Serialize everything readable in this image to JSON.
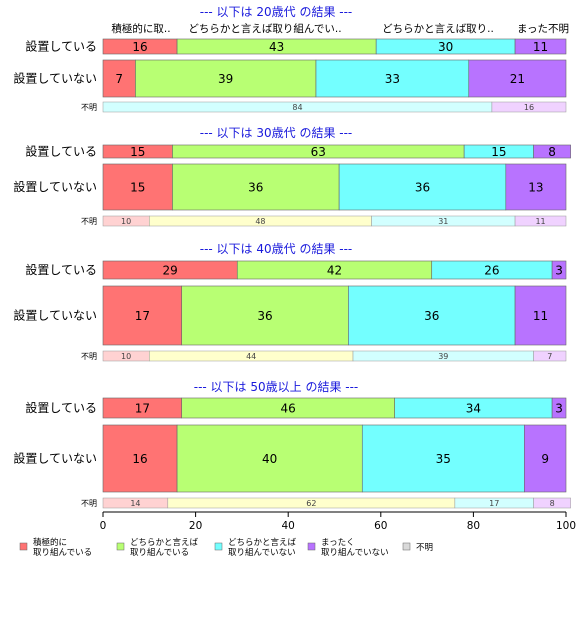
{
  "chart_data": {
    "type": "bar",
    "orientation": "horizontal-stacked-percent",
    "categories": [
      "積極的に\n取り組んでいる",
      "どちらかと言えば\n取り組んでいる",
      "どちらかと言えば\n取り組んでいない",
      "まったく\n取り組んでいない",
      "不明"
    ],
    "colors": [
      "#ff7373",
      "#b8ff73",
      "#73ffff",
      "#b873ff",
      "#d9d9d9"
    ],
    "light_colors": [
      "#ffd2d2",
      "#ffffcc",
      "#d2ffff",
      "#f0d2ff",
      "#e0e0e0"
    ],
    "category_headers": [
      "積極的に取..",
      "どちらかと言えば取り組んでい..",
      "どちらかと言えば取り..",
      "まった不明"
    ],
    "xlim": [
      0,
      100
    ],
    "xticks": [
      0,
      20,
      40,
      60,
      80,
      100
    ],
    "legend_position": "bottom",
    "groups": [
      {
        "title": "--- 以下は 20歳代 の結果 ---",
        "rows": [
          {
            "label": "設置している",
            "values": [
              16,
              43,
              30,
              11
            ]
          },
          {
            "label": "設置していない",
            "values": [
              7,
              39,
              33,
              21
            ]
          }
        ],
        "unknown": {
          "label": "不明",
          "values": [
            84,
            16
          ],
          "colors": [
            "#d2ffff",
            "#f0d2ff"
          ]
        }
      },
      {
        "title": "--- 以下は 30歳代 の結果 ---",
        "rows": [
          {
            "label": "設置している",
            "values": [
              15,
              63,
              15,
              8
            ]
          },
          {
            "label": "設置していない",
            "values": [
              15,
              36,
              36,
              13
            ]
          }
        ],
        "unknown": {
          "label": "不明",
          "values": [
            10,
            48,
            31,
            11
          ],
          "colors": [
            "#ffd2d2",
            "#ffffcc",
            "#d2ffff",
            "#f0d2ff"
          ]
        }
      },
      {
        "title": "--- 以下は 40歳代 の結果 ---",
        "rows": [
          {
            "label": "設置している",
            "values": [
              29,
              42,
              26,
              3
            ]
          },
          {
            "label": "設置していない",
            "values": [
              17,
              36,
              36,
              11
            ]
          }
        ],
        "unknown": {
          "label": "不明",
          "values": [
            10,
            44,
            39,
            7
          ],
          "colors": [
            "#ffd2d2",
            "#ffffcc",
            "#d2ffff",
            "#f0d2ff"
          ]
        }
      },
      {
        "title": "--- 以下は 50歳以上 の結果 ---",
        "rows": [
          {
            "label": "設置している",
            "values": [
              17,
              46,
              34,
              3
            ]
          },
          {
            "label": "設置していない",
            "values": [
              16,
              40,
              35,
              9
            ]
          }
        ],
        "unknown": {
          "label": "不明",
          "values": [
            14,
            62,
            17,
            8
          ],
          "colors": [
            "#ffd2d2",
            "#ffffcc",
            "#d2ffff",
            "#f0d2ff"
          ]
        }
      }
    ]
  }
}
